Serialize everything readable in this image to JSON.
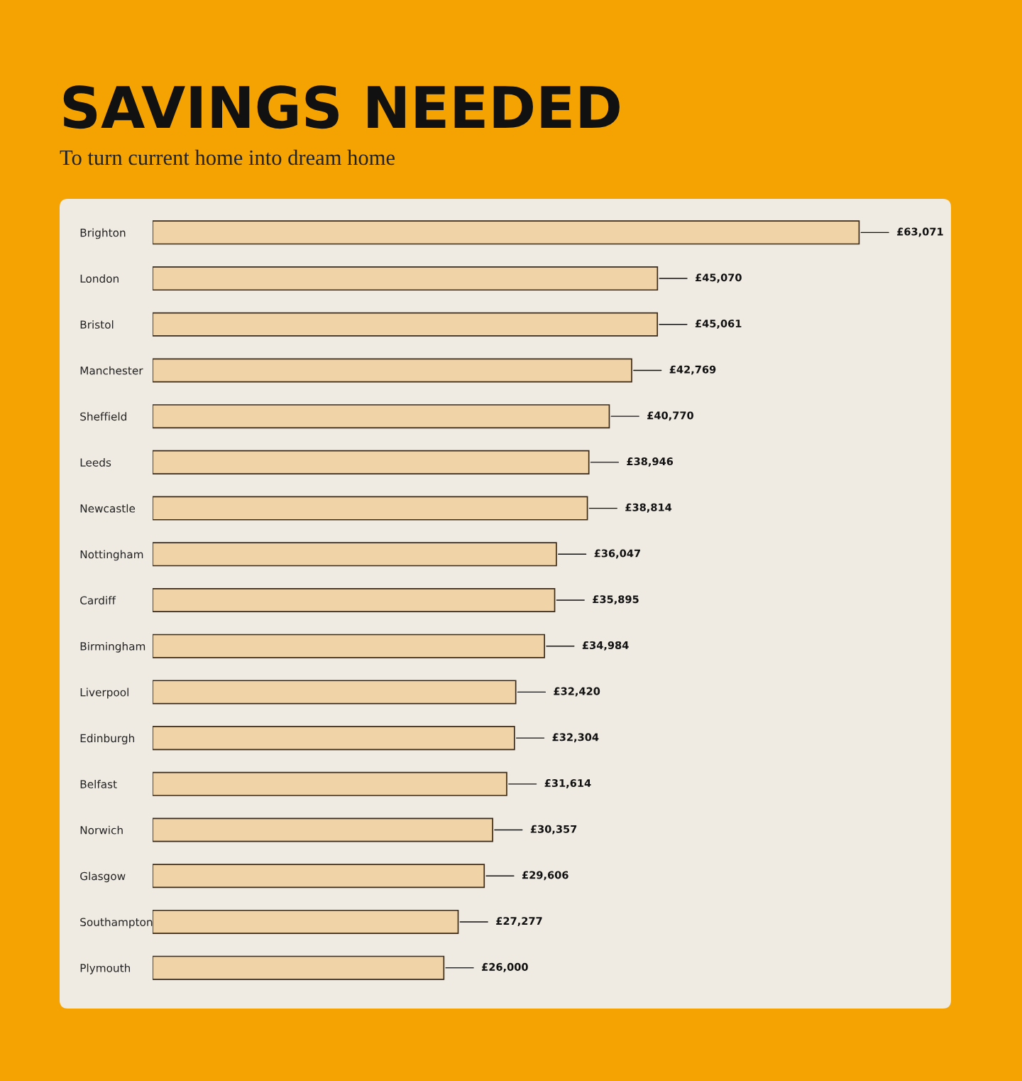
{
  "chart_data": {
    "type": "bar",
    "orientation": "horizontal",
    "title": "SAVINGS NEEDED",
    "subtitle": "To turn current home into dream home",
    "categories": [
      "Brighton",
      "London",
      "Bristol",
      "Manchester",
      "Sheffield",
      "Leeds",
      "Newcastle",
      "Nottingham",
      "Cardiff",
      "Birmingham",
      "Liverpool",
      "Edinburgh",
      "Belfast",
      "Norwich",
      "Glasgow",
      "Southampton",
      "Plymouth"
    ],
    "values": [
      63071,
      45070,
      45061,
      42769,
      40770,
      38946,
      38814,
      36047,
      35895,
      34984,
      32420,
      32304,
      31614,
      30357,
      29606,
      27277,
      26000
    ],
    "value_labels": [
      "£63,071",
      "£45,070",
      "£45,061",
      "£42,769",
      "£40,770",
      "£38,946",
      "£38,814",
      "£36,047",
      "£35,895",
      "£34,984",
      "£32,420",
      "£32,304",
      "£31,614",
      "£30,357",
      "£29,606",
      "£27,277",
      "£26,000"
    ],
    "color": "#f0d3a6",
    "tick_labels": "y",
    "grid": false,
    "legend": false
  }
}
